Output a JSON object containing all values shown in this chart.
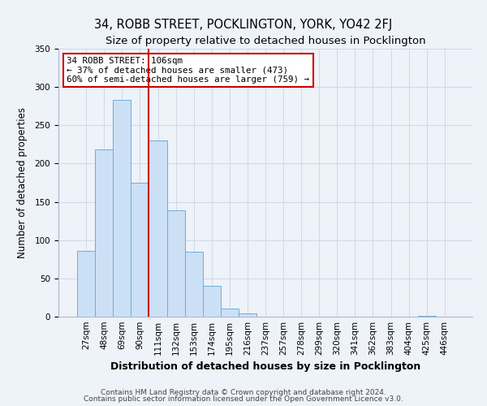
{
  "title": "34, ROBB STREET, POCKLINGTON, YORK, YO42 2FJ",
  "subtitle": "Size of property relative to detached houses in Pocklington",
  "xlabel": "Distribution of detached houses by size in Pocklington",
  "ylabel": "Number of detached properties",
  "bar_labels": [
    "27sqm",
    "48sqm",
    "69sqm",
    "90sqm",
    "111sqm",
    "132sqm",
    "153sqm",
    "174sqm",
    "195sqm",
    "216sqm",
    "237sqm",
    "257sqm",
    "278sqm",
    "299sqm",
    "320sqm",
    "341sqm",
    "362sqm",
    "383sqm",
    "404sqm",
    "425sqm",
    "446sqm"
  ],
  "bar_values": [
    86,
    219,
    283,
    175,
    230,
    139,
    85,
    40,
    11,
    4,
    0,
    0,
    0,
    0,
    0,
    0,
    0,
    0,
    0,
    1,
    0
  ],
  "bar_color": "#cce0f5",
  "bar_edge_color": "#6aaed6",
  "vline_color": "#cc0000",
  "vline_position": 3.5,
  "ylim": [
    0,
    350
  ],
  "yticks": [
    0,
    50,
    100,
    150,
    200,
    250,
    300,
    350
  ],
  "annotation_title": "34 ROBB STREET: 106sqm",
  "annotation_line1": "← 37% of detached houses are smaller (473)",
  "annotation_line2": "60% of semi-detached houses are larger (759) →",
  "footer1": "Contains HM Land Registry data © Crown copyright and database right 2024.",
  "footer2": "Contains public sector information licensed under the Open Government Licence v3.0.",
  "bg_color": "#eef2f9",
  "title_fontsize": 10.5,
  "subtitle_fontsize": 9.5,
  "xlabel_fontsize": 9,
  "ylabel_fontsize": 8.5,
  "tick_fontsize": 7.5,
  "footer_fontsize": 6.5
}
